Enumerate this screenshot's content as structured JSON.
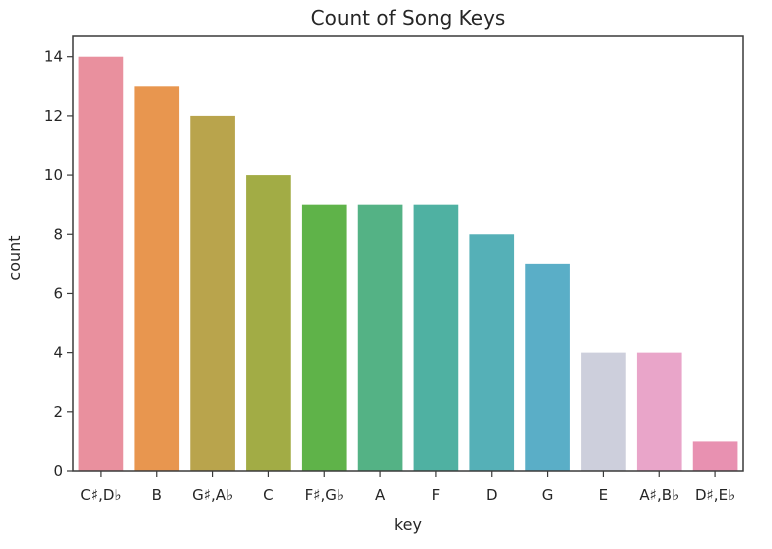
{
  "chart_data": {
    "type": "bar",
    "title": "Count of Song Keys",
    "xlabel": "key",
    "ylabel": "count",
    "categories": [
      "C♯,D♭",
      "B",
      "G♯,A♭",
      "C",
      "F♯,G♭",
      "A",
      "F",
      "D",
      "G",
      "E",
      "A♯,B♭",
      "D♯,E♭"
    ],
    "values": [
      14,
      13,
      12,
      10,
      9,
      9,
      9,
      8,
      7,
      4,
      4,
      1
    ],
    "colors": [
      "#e9909e",
      "#e8964f",
      "#b9a44c",
      "#a2ac45",
      "#5fb349",
      "#54b285",
      "#4fb1a2",
      "#55b0b7",
      "#5aaec7",
      "#cdcfdc",
      "#e9a5c9",
      "#e891b1"
    ],
    "yticks": [
      0,
      2,
      4,
      6,
      8,
      10,
      12,
      14
    ],
    "ylim": [
      0,
      14.7
    ],
    "grid": false,
    "legend": "none"
  }
}
